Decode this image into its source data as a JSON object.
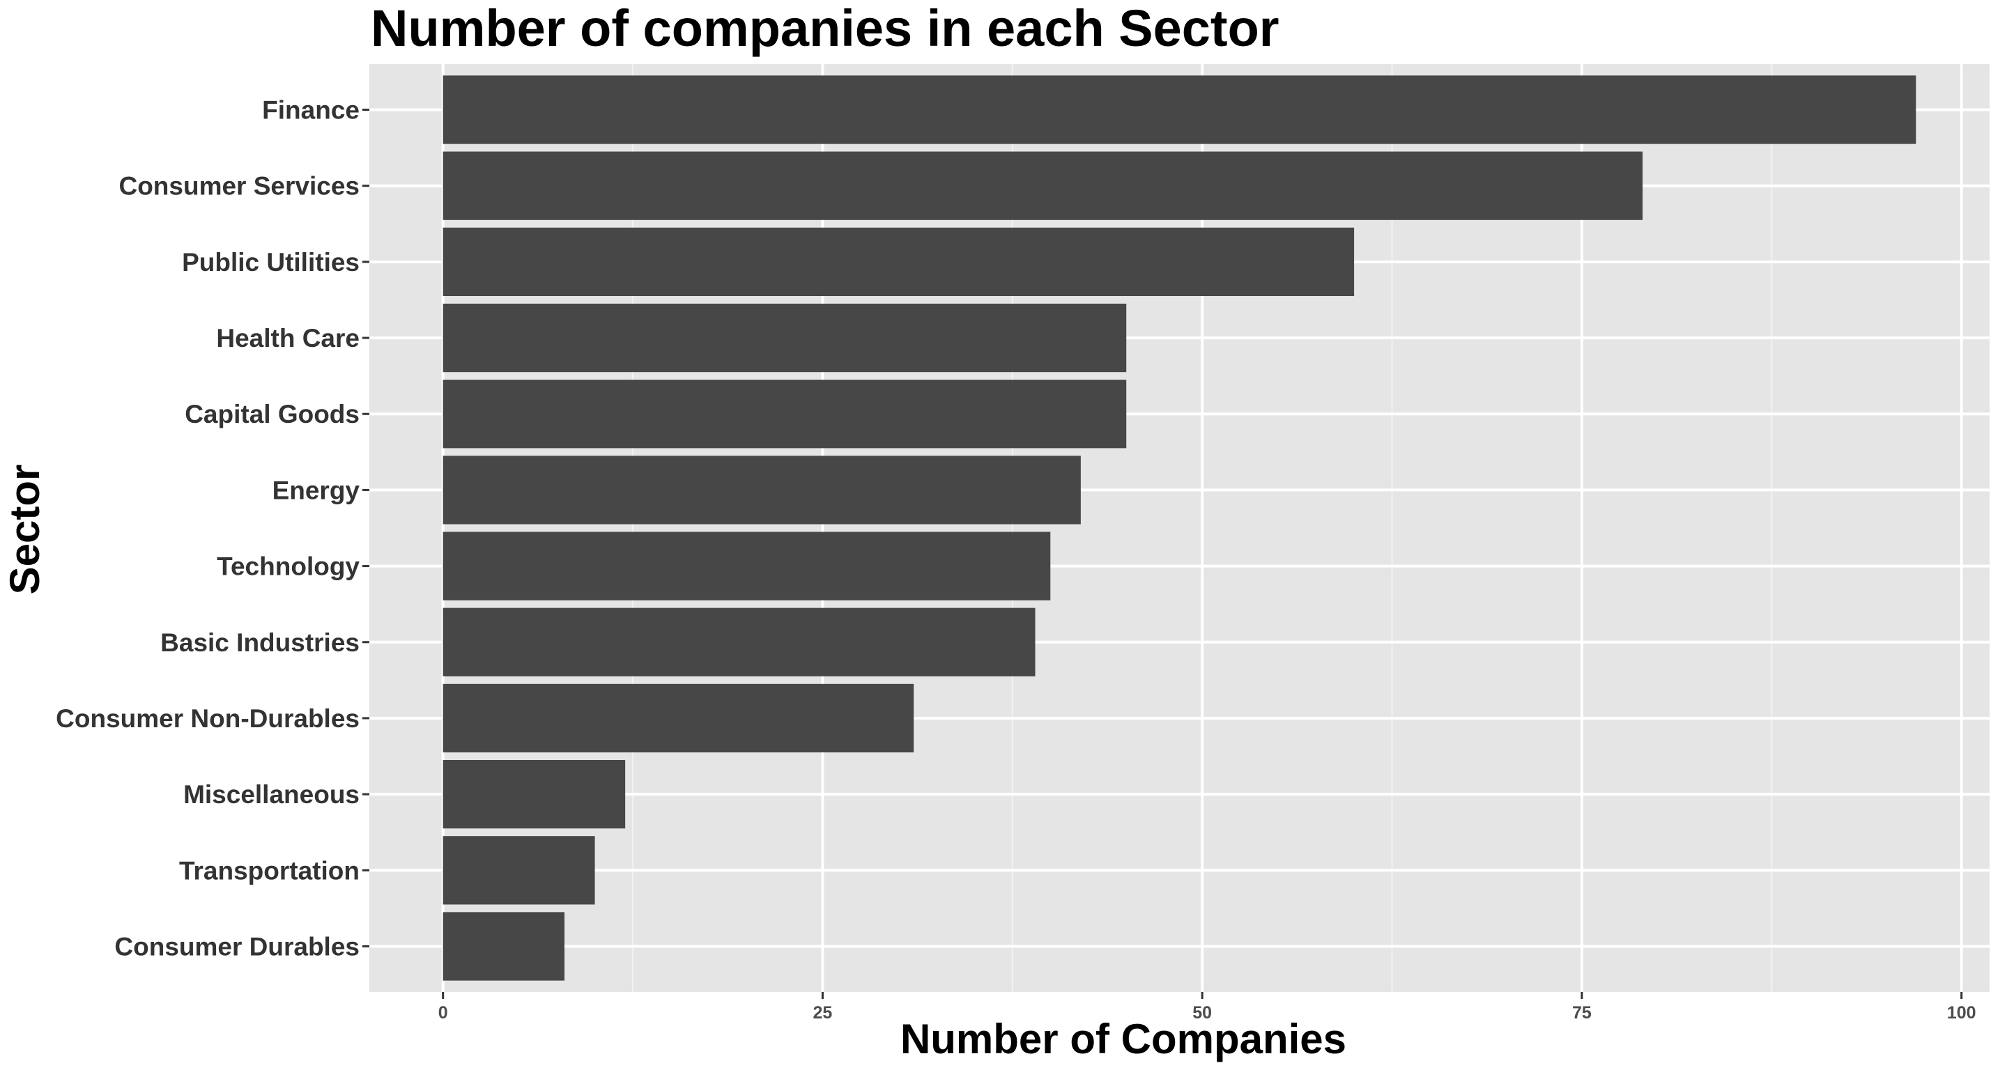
{
  "chart_data": {
    "type": "bar",
    "orientation": "horizontal",
    "title": "Number of companies in each Sector",
    "xlabel": "Number of Companies",
    "ylabel": "Sector",
    "categories": [
      "Finance",
      "Consumer Services",
      "Public Utilities",
      "Health Care",
      "Capital Goods",
      "Energy",
      "Technology",
      "Basic Industries",
      "Consumer Non-Durables",
      "Miscellaneous",
      "Transportation",
      "Consumer Durables"
    ],
    "values": [
      97,
      79,
      60,
      45,
      45,
      42,
      40,
      39,
      31,
      12,
      10,
      8
    ],
    "xlim": [
      -4.85,
      101.85
    ],
    "xticks": [
      0,
      25,
      50,
      75,
      100
    ],
    "xtick_labels": [
      "0",
      "25",
      "50",
      "75",
      "100"
    ],
    "grid": true,
    "legend": "none",
    "colors": {
      "bar": "#474747",
      "panel_background": "#e5e5e5",
      "grid_major": "#ffffff",
      "grid_minor": "#f2f2f2",
      "tick_mark": "#333333"
    }
  }
}
